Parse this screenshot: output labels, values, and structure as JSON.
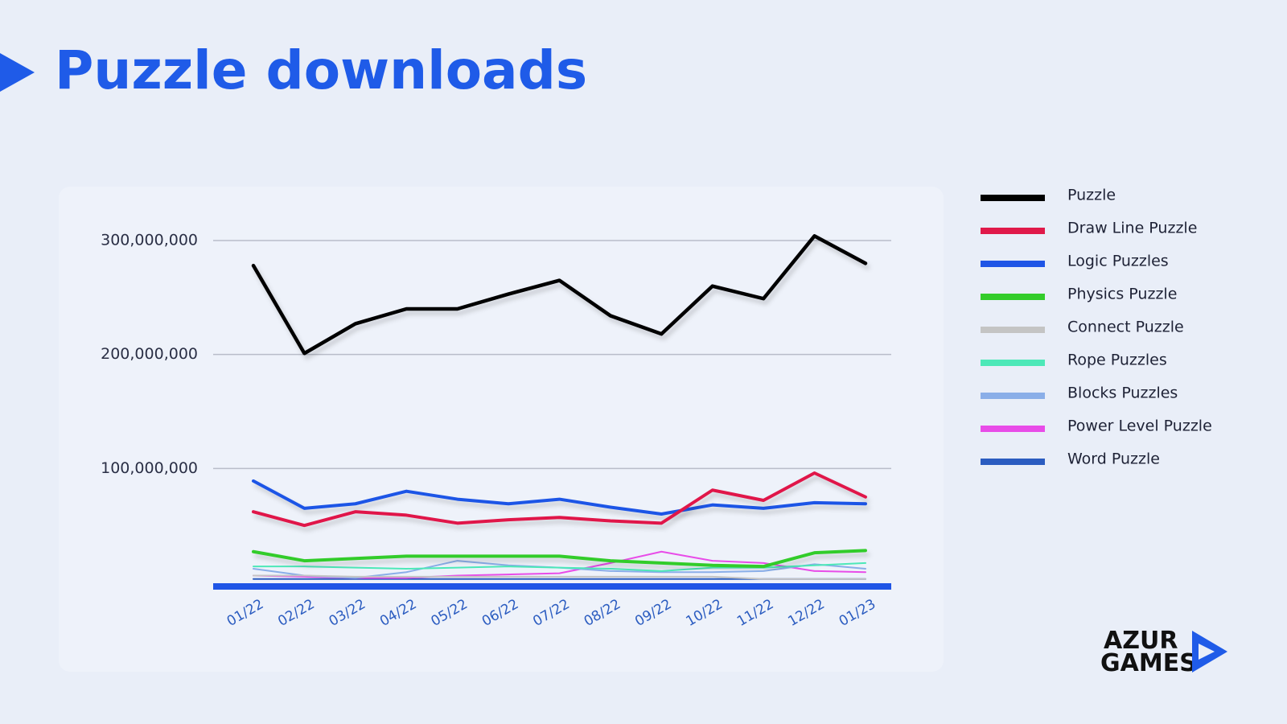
{
  "chart_data": {
    "type": "line",
    "title": "Puzzle downloads",
    "categories": [
      "01/22",
      "02/22",
      "03/22",
      "04/22",
      "05/22",
      "06/22",
      "07/22",
      "08/22",
      "09/22",
      "10/22",
      "11/22",
      "12/22",
      "01/23"
    ],
    "ylim": [
      0,
      300000000
    ],
    "yticks": [
      {
        "value": 100000000,
        "label": "100,000,000"
      },
      {
        "value": 200000000,
        "label": "200,000,000"
      },
      {
        "value": 300000000,
        "label": "300,000,000"
      }
    ],
    "grid": true,
    "series": [
      {
        "name": "Puzzle",
        "color": "#000000",
        "line_width": 4.5,
        "values": [
          278000000,
          201000000,
          227000000,
          240000000,
          240000000,
          253000000,
          265000000,
          234000000,
          218000000,
          260000000,
          249000000,
          304000000,
          280000000
        ]
      },
      {
        "name": "Draw Line Puzzle",
        "color": "#e0194a",
        "line_width": 4,
        "values": [
          62000000,
          50000000,
          62000000,
          59000000,
          52000000,
          55000000,
          57000000,
          54000000,
          52000000,
          81000000,
          72000000,
          96000000,
          75000000
        ]
      },
      {
        "name": "Logic Puzzles",
        "color": "#1f55e6",
        "line_width": 4,
        "values": [
          89000000,
          65000000,
          69000000,
          80000000,
          73000000,
          69000000,
          73000000,
          66000000,
          60000000,
          68000000,
          65000000,
          70000000,
          69000000
        ]
      },
      {
        "name": "Physics Puzzle",
        "color": "#33cc2a",
        "line_width": 4,
        "values": [
          27000000,
          19000000,
          21000000,
          23000000,
          23000000,
          23000000,
          23000000,
          19000000,
          17000000,
          15000000,
          14000000,
          26000000,
          28000000
        ]
      },
      {
        "name": "Connect Puzzle",
        "color": "#c4c4c4",
        "line_width": 2,
        "values": [
          6000000,
          6000000,
          5000000,
          5000000,
          5000000,
          5000000,
          5000000,
          5000000,
          5000000,
          5000000,
          3000000,
          3000000,
          3000000
        ]
      },
      {
        "name": "Rope Puzzles",
        "color": "#4de8b8",
        "line_width": 2,
        "values": [
          14000000,
          14000000,
          13000000,
          12000000,
          13000000,
          14000000,
          13000000,
          12000000,
          10000000,
          13000000,
          13000000,
          15000000,
          17000000
        ]
      },
      {
        "name": "Blocks Puzzles",
        "color": "#8aaee8",
        "line_width": 2,
        "values": [
          12000000,
          6000000,
          4000000,
          9000000,
          19000000,
          15000000,
          13000000,
          10000000,
          9000000,
          9000000,
          10000000,
          16000000,
          12000000
        ]
      },
      {
        "name": "Power Level Puzzle",
        "color": "#e84ce8",
        "line_width": 2,
        "values": [
          6000000,
          5000000,
          4000000,
          4000000,
          6000000,
          7000000,
          8000000,
          17000000,
          27000000,
          19000000,
          17000000,
          10000000,
          9000000
        ]
      },
      {
        "name": "Word Puzzle",
        "color": "#2b5cc0",
        "line_width": 2,
        "values": [
          3000000,
          3000000,
          3000000,
          3000000,
          3000000,
          3000000,
          3000000,
          3000000,
          3000000,
          3000000,
          3000000,
          3000000,
          3000000
        ]
      }
    ]
  },
  "logo": {
    "lines": [
      "AZUR",
      "GAMES"
    ]
  }
}
